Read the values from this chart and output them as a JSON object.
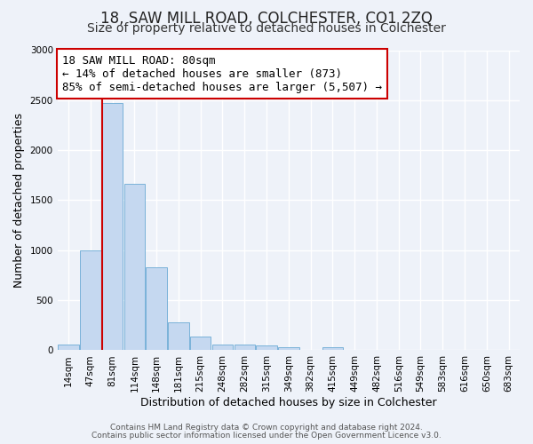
{
  "title": "18, SAW MILL ROAD, COLCHESTER, CO1 2ZQ",
  "subtitle": "Size of property relative to detached houses in Colchester",
  "xlabel": "Distribution of detached houses by size in Colchester",
  "ylabel": "Number of detached properties",
  "categories": [
    "14sqm",
    "47sqm",
    "81sqm",
    "114sqm",
    "148sqm",
    "181sqm",
    "215sqm",
    "248sqm",
    "282sqm",
    "315sqm",
    "349sqm",
    "382sqm",
    "415sqm",
    "449sqm",
    "482sqm",
    "516sqm",
    "549sqm",
    "583sqm",
    "616sqm",
    "650sqm",
    "683sqm"
  ],
  "values": [
    55,
    1000,
    2470,
    1660,
    830,
    280,
    140,
    55,
    55,
    50,
    30,
    0,
    30,
    0,
    0,
    0,
    0,
    0,
    0,
    0,
    0
  ],
  "bar_color": "#c5d8f0",
  "bar_edge_color": "#6aaad4",
  "reference_line_color": "#cc0000",
  "annotation_text": "18 SAW MILL ROAD: 80sqm\n← 14% of detached houses are smaller (873)\n85% of semi-detached houses are larger (5,507) →",
  "annotation_box_facecolor": "#ffffff",
  "annotation_box_edgecolor": "#cc0000",
  "ylim": [
    0,
    3000
  ],
  "yticks": [
    0,
    500,
    1000,
    1500,
    2000,
    2500,
    3000
  ],
  "footer_line1": "Contains HM Land Registry data © Crown copyright and database right 2024.",
  "footer_line2": "Contains public sector information licensed under the Open Government Licence v3.0.",
  "background_color": "#eef2f9",
  "grid_color": "#ffffff",
  "title_fontsize": 12,
  "subtitle_fontsize": 10,
  "axis_label_fontsize": 9,
  "tick_fontsize": 7.5,
  "annotation_fontsize": 9,
  "footer_fontsize": 6.5
}
